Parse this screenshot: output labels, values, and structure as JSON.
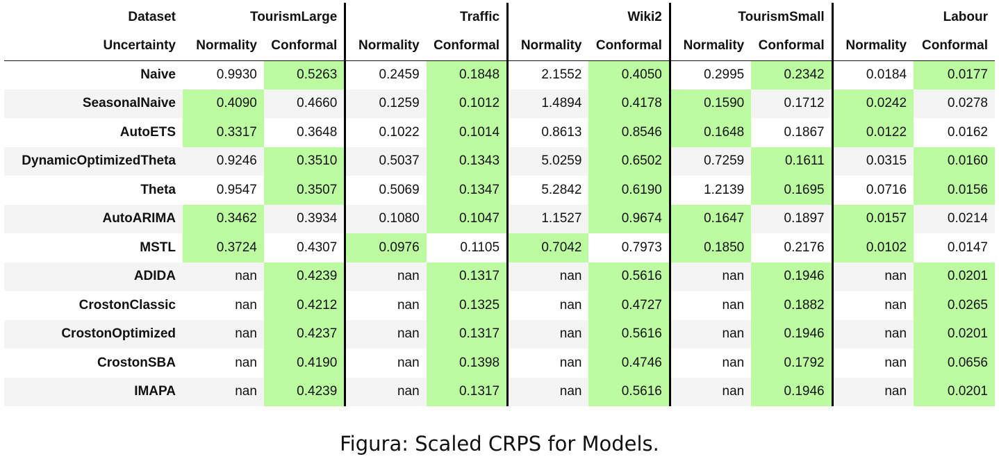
{
  "header": {
    "dataset_label": "Dataset",
    "uncertainty_label": "Uncertainty",
    "datasets": [
      "TourismLarge",
      "Traffic",
      "Wiki2",
      "TourismSmall",
      "Labour"
    ],
    "methods": [
      "Normality",
      "Conformal"
    ]
  },
  "rows": [
    {
      "model": "Naive",
      "values": [
        "0.9930",
        "0.5263",
        "0.2459",
        "0.1848",
        "2.1552",
        "0.4050",
        "0.2995",
        "0.2342",
        "0.0184",
        "0.0177"
      ],
      "best": [
        1,
        1,
        1,
        1,
        1
      ]
    },
    {
      "model": "SeasonalNaive",
      "values": [
        "0.4090",
        "0.4660",
        "0.1259",
        "0.1012",
        "1.4894",
        "0.4178",
        "0.1590",
        "0.1712",
        "0.0242",
        "0.0278"
      ],
      "best": [
        0,
        1,
        1,
        0,
        0
      ]
    },
    {
      "model": "AutoETS",
      "values": [
        "0.3317",
        "0.3648",
        "0.1022",
        "0.1014",
        "0.8613",
        "0.8546",
        "0.1648",
        "0.1867",
        "0.0122",
        "0.0162"
      ],
      "best": [
        0,
        1,
        1,
        0,
        0
      ]
    },
    {
      "model": "DynamicOptimizedTheta",
      "values": [
        "0.9246",
        "0.3510",
        "0.5037",
        "0.1343",
        "5.0259",
        "0.6502",
        "0.7259",
        "0.1611",
        "0.0315",
        "0.0160"
      ],
      "best": [
        1,
        1,
        1,
        1,
        1
      ]
    },
    {
      "model": "Theta",
      "values": [
        "0.9547",
        "0.3507",
        "0.5069",
        "0.1347",
        "5.2842",
        "0.6190",
        "1.2139",
        "0.1695",
        "0.0716",
        "0.0156"
      ],
      "best": [
        1,
        1,
        1,
        1,
        1
      ]
    },
    {
      "model": "AutoARIMA",
      "values": [
        "0.3462",
        "0.3934",
        "0.1080",
        "0.1047",
        "1.1527",
        "0.9674",
        "0.1647",
        "0.1897",
        "0.0157",
        "0.0214"
      ],
      "best": [
        0,
        1,
        1,
        0,
        0
      ]
    },
    {
      "model": "MSTL",
      "values": [
        "0.3724",
        "0.4307",
        "0.0976",
        "0.1105",
        "0.7042",
        "0.7973",
        "0.1850",
        "0.2176",
        "0.0102",
        "0.0147"
      ],
      "best": [
        0,
        0,
        0,
        0,
        0
      ]
    },
    {
      "model": "ADIDA",
      "values": [
        "nan",
        "0.4239",
        "nan",
        "0.1317",
        "nan",
        "0.5616",
        "nan",
        "0.1946",
        "nan",
        "0.0201"
      ],
      "best": [
        1,
        1,
        1,
        1,
        1
      ]
    },
    {
      "model": "CrostonClassic",
      "values": [
        "nan",
        "0.4212",
        "nan",
        "0.1325",
        "nan",
        "0.4727",
        "nan",
        "0.1882",
        "nan",
        "0.0265"
      ],
      "best": [
        1,
        1,
        1,
        1,
        1
      ]
    },
    {
      "model": "CrostonOptimized",
      "values": [
        "nan",
        "0.4237",
        "nan",
        "0.1317",
        "nan",
        "0.5616",
        "nan",
        "0.1946",
        "nan",
        "0.0201"
      ],
      "best": [
        1,
        1,
        1,
        1,
        1
      ]
    },
    {
      "model": "CrostonSBA",
      "values": [
        "nan",
        "0.4190",
        "nan",
        "0.1398",
        "nan",
        "0.4746",
        "nan",
        "0.1792",
        "nan",
        "0.0656"
      ],
      "best": [
        1,
        1,
        1,
        1,
        1
      ]
    },
    {
      "model": "IMAPA",
      "values": [
        "nan",
        "0.4239",
        "nan",
        "0.1317",
        "nan",
        "0.5616",
        "nan",
        "0.1946",
        "nan",
        "0.0201"
      ],
      "best": [
        1,
        1,
        1,
        1,
        1
      ]
    }
  ],
  "colors": {
    "highlight": "#bdfba0",
    "stripe": "#f4f4f4"
  },
  "caption": "Figura: Scaled CRPS for Models."
}
